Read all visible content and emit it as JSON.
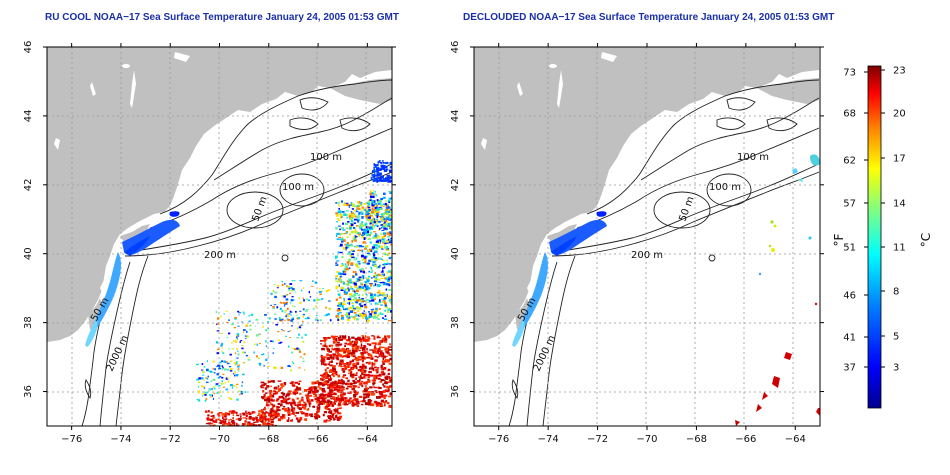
{
  "maps": [
    {
      "title": "RU COOL NOAA−17 Sea Surface Temperature January 24, 2005 01:53 GMT",
      "contour_labels": [
        "100 m",
        "100 m",
        "50 m",
        "200 m",
        "50 m",
        "2000 m"
      ]
    },
    {
      "title": "DECLOUDED NOAA−17 Sea Surface Temperature January 24, 2005 01:53 GMT",
      "contour_labels": [
        "100 m",
        "100 m",
        "50 m",
        "200 m",
        "50 m",
        "2000 m"
      ]
    }
  ],
  "axes": {
    "lon_ticks": [
      "−76",
      "−74",
      "−72",
      "−70",
      "−68",
      "−66",
      "−64"
    ],
    "lat_ticks": [
      "36",
      "38",
      "40",
      "42",
      "44",
      "46"
    ],
    "lon_range": [
      -77,
      -63
    ],
    "lat_range": [
      35,
      46
    ]
  },
  "colorbar": {
    "f_label": "°F",
    "c_label": "°C",
    "f_ticks": [
      "73",
      "68",
      "62",
      "57",
      "51",
      "46",
      "41",
      "37"
    ],
    "c_ticks": [
      "23",
      "20",
      "17",
      "14",
      "11",
      "8",
      "5",
      "3"
    ],
    "colors": [
      "#00008f",
      "#0000ff",
      "#0080ff",
      "#00ffff",
      "#80ff80",
      "#ffff00",
      "#ff8000",
      "#ff0000",
      "#800000"
    ]
  },
  "colors": {
    "land": "#c0c0c0",
    "title": "#1a2fa8",
    "contour": "#222222",
    "grid": "#999999"
  }
}
